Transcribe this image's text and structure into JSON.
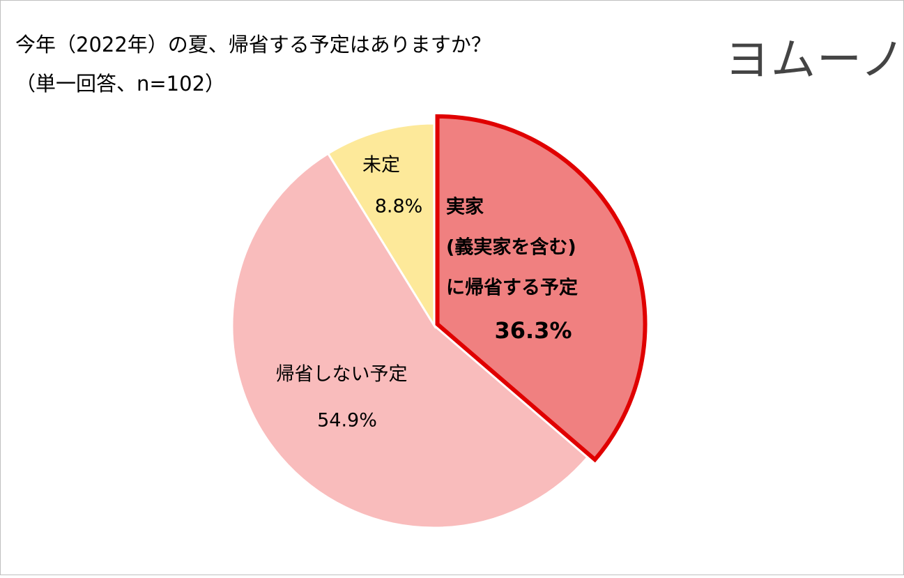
{
  "chart_data": {
    "type": "pie",
    "title": "今年（2022年）の夏、帰省する予定はありますか？",
    "subtitle": "（単一回答、n=102）",
    "logo": "ヨムーノ",
    "categories": [
      [
        "実家",
        "(義実家を含む)",
        "に帰省する予定"
      ],
      [
        "帰省しない予定"
      ],
      [
        "未定"
      ]
    ],
    "values": [
      36.3,
      54.9,
      8.8
    ],
    "value_labels": [
      "36.3%",
      "54.9%",
      "8.8%"
    ],
    "colors": [
      "#f08080",
      "#f9bcbc",
      "#fde99a"
    ],
    "highlight_color": "#e00000"
  }
}
